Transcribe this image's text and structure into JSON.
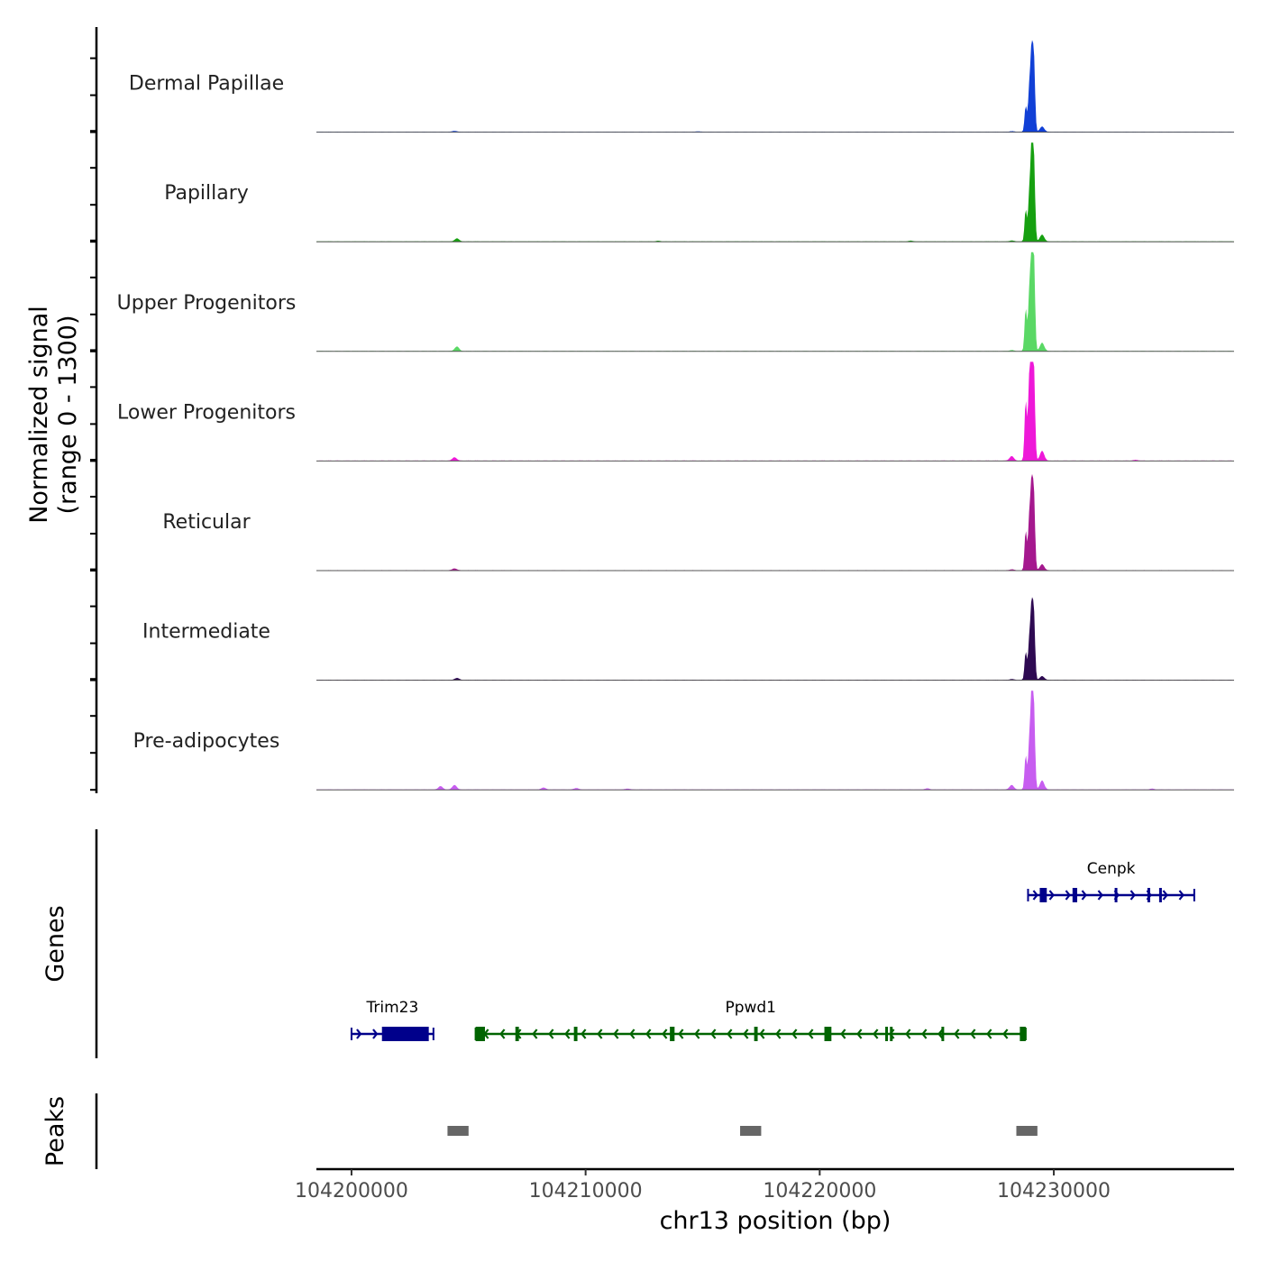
{
  "chart_data": {
    "type": "area",
    "title": "",
    "chromosome": "chr13",
    "xlabel": "chr13 position (bp)",
    "xlim": [
      104198500,
      104237700
    ],
    "x_ticks": [
      104200000,
      104210000,
      104220000,
      104230000
    ],
    "x_tick_labels": [
      "104200000",
      "104210000",
      "104220000",
      "104230000"
    ],
    "coverage_ylabel_line1": "Normalized signal",
    "coverage_ylabel_line2": "(range 0 - 1300)",
    "ylim": [
      0,
      1300
    ],
    "genes_ylabel": "Genes",
    "peaks_ylabel": "Peaks",
    "tracks": [
      {
        "name": "Dermal Papillae",
        "color": "#1140D6",
        "peaks": [
          [
            104204400,
            12
          ],
          [
            104214800,
            6
          ],
          [
            104228200,
            8
          ],
          [
            104228800,
            340
          ],
          [
            104228950,
            530
          ],
          [
            104229050,
            1000
          ],
          [
            104229150,
            950
          ],
          [
            104229500,
            70
          ]
        ]
      },
      {
        "name": "Papillary",
        "color": "#16A010",
        "peaks": [
          [
            104204500,
            40
          ],
          [
            104213100,
            8
          ],
          [
            104223900,
            10
          ],
          [
            104228200,
            12
          ],
          [
            104228800,
            420
          ],
          [
            104228950,
            560
          ],
          [
            104229050,
            1160
          ],
          [
            104229150,
            1080
          ],
          [
            104229500,
            90
          ]
        ]
      },
      {
        "name": "Upper Progenitors",
        "color": "#5AD865",
        "peaks": [
          [
            104204500,
            60
          ],
          [
            104228200,
            12
          ],
          [
            104228800,
            560
          ],
          [
            104228950,
            680
          ],
          [
            104229050,
            1270
          ],
          [
            104229150,
            1200
          ],
          [
            104229500,
            110
          ]
        ]
      },
      {
        "name": "Lower Progenitors",
        "color": "#EE18D8",
        "peaks": [
          [
            104204400,
            45
          ],
          [
            104228200,
            60
          ],
          [
            104228800,
            790
          ],
          [
            104228950,
            1000
          ],
          [
            104229050,
            1240
          ],
          [
            104229150,
            1180
          ],
          [
            104229500,
            130
          ],
          [
            104233500,
            10
          ]
        ]
      },
      {
        "name": "Reticular",
        "color": "#A5188E",
        "peaks": [
          [
            104204400,
            25
          ],
          [
            104228200,
            12
          ],
          [
            104228800,
            520
          ],
          [
            104228950,
            640
          ],
          [
            104229050,
            1050
          ],
          [
            104229150,
            980
          ],
          [
            104229500,
            80
          ]
        ]
      },
      {
        "name": "Intermediate",
        "color": "#2E0A52",
        "peaks": [
          [
            104204500,
            25
          ],
          [
            104228200,
            10
          ],
          [
            104228800,
            370
          ],
          [
            104228950,
            480
          ],
          [
            104229050,
            900
          ],
          [
            104229150,
            860
          ],
          [
            104229500,
            50
          ]
        ]
      },
      {
        "name": "Pre-adipocytes",
        "color": "#C75DF0",
        "peaks": [
          [
            104203800,
            45
          ],
          [
            104204400,
            60
          ],
          [
            104208200,
            25
          ],
          [
            104209600,
            20
          ],
          [
            104211800,
            12
          ],
          [
            104224600,
            15
          ],
          [
            104228200,
            60
          ],
          [
            104228800,
            450
          ],
          [
            104228950,
            560
          ],
          [
            104229050,
            1180
          ],
          [
            104229150,
            1080
          ],
          [
            104229500,
            120
          ],
          [
            104234200,
            10
          ]
        ]
      }
    ],
    "genes": [
      {
        "name": "Trim23",
        "strand": "+",
        "start": 104200000,
        "end": 104203500,
        "color": "#00008B",
        "exons": [
          [
            104201300,
            104203300
          ]
        ]
      },
      {
        "name": "Ppwd1",
        "strand": "-",
        "start": 104205300,
        "end": 104228800,
        "color": "#006400",
        "exons": [
          [
            104205300,
            104205700
          ],
          [
            104207000,
            104207150
          ],
          [
            104209500,
            104209650
          ],
          [
            104213600,
            104213800
          ],
          [
            104217200,
            104217350
          ],
          [
            104220200,
            104220500
          ],
          [
            104222800,
            104222900
          ],
          [
            104223000,
            104223100
          ],
          [
            104225200,
            104225300
          ],
          [
            104228550,
            104228800
          ]
        ]
      },
      {
        "name": "Cenpk",
        "strand": "+",
        "start": 104228900,
        "end": 104236000,
        "color": "#00008B",
        "exons": [
          [
            104229400,
            104229700
          ],
          [
            104230800,
            104231000
          ],
          [
            104232600,
            104232700
          ],
          [
            104234000,
            104234100
          ],
          [
            104234500,
            104234600
          ]
        ]
      }
    ],
    "peaks": [
      [
        104204100,
        104205000
      ],
      [
        104216600,
        104217500
      ],
      [
        104228400,
        104229300
      ]
    ],
    "peak_color": "#666666"
  }
}
